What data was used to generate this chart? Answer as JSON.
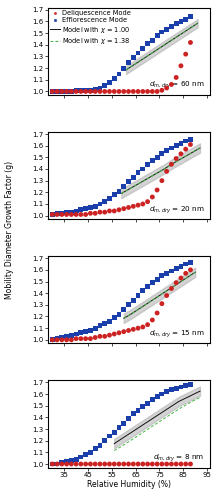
{
  "panels": [
    {
      "label": "$d_{m,dry}$ = 60 nm",
      "ylim": [
        0.97,
        1.72
      ],
      "yticks": [
        1.0,
        1.1,
        1.2,
        1.3,
        1.4,
        1.5,
        1.6,
        1.7
      ],
      "del_rh": [
        30,
        32,
        34,
        36,
        38,
        40,
        42,
        44,
        46,
        48,
        50,
        52,
        54,
        56,
        58,
        60,
        62,
        64,
        66,
        68,
        70,
        72,
        74,
        76,
        78,
        80,
        82,
        84,
        86,
        88
      ],
      "del_gf": [
        1.0,
        1.0,
        1.0,
        1.0,
        1.0,
        1.0,
        1.0,
        1.0,
        1.0,
        1.0,
        1.0,
        1.0,
        1.0,
        1.0,
        1.0,
        1.0,
        1.0,
        1.0,
        1.0,
        1.0,
        1.0,
        1.0,
        1.0,
        1.01,
        1.03,
        1.06,
        1.12,
        1.22,
        1.32,
        1.42
      ],
      "eff_rh": [
        30,
        32,
        34,
        36,
        38,
        40,
        42,
        44,
        46,
        48,
        50,
        52,
        54,
        56,
        58,
        60,
        62,
        64,
        66,
        68,
        70,
        72,
        74,
        76,
        78,
        80,
        82,
        84,
        86,
        88
      ],
      "eff_gf": [
        1.0,
        1.0,
        1.0,
        1.0,
        1.0,
        1.01,
        1.01,
        1.01,
        1.01,
        1.02,
        1.03,
        1.05,
        1.08,
        1.11,
        1.15,
        1.2,
        1.25,
        1.29,
        1.33,
        1.37,
        1.41,
        1.44,
        1.48,
        1.51,
        1.53,
        1.56,
        1.58,
        1.6,
        1.62,
        1.64
      ],
      "model1_rh": [
        61,
        64,
        67,
        70,
        73,
        76,
        79,
        82,
        85,
        88,
        91
      ],
      "model1_gf": [
        1.185,
        1.225,
        1.265,
        1.305,
        1.345,
        1.385,
        1.425,
        1.465,
        1.505,
        1.545,
        1.585
      ],
      "model1_band": 0.035,
      "model2_rh": [
        61,
        64,
        67,
        70,
        73,
        76,
        79,
        82,
        85,
        88,
        91
      ],
      "model2_gf": [
        1.185,
        1.225,
        1.265,
        1.305,
        1.345,
        1.385,
        1.425,
        1.465,
        1.505,
        1.545,
        1.585
      ],
      "show_legend": true
    },
    {
      "label": "$d_{m,dry}$ = 20 nm",
      "ylim": [
        0.97,
        1.72
      ],
      "yticks": [
        1.0,
        1.1,
        1.2,
        1.3,
        1.4,
        1.5,
        1.6,
        1.7
      ],
      "del_rh": [
        30,
        32,
        34,
        36,
        38,
        40,
        42,
        44,
        46,
        48,
        50,
        52,
        54,
        56,
        58,
        60,
        62,
        64,
        66,
        68,
        70,
        72,
        74,
        76,
        78,
        80,
        82,
        84,
        86,
        88
      ],
      "del_gf": [
        1.01,
        1.01,
        1.01,
        1.01,
        1.01,
        1.01,
        1.01,
        1.01,
        1.02,
        1.02,
        1.03,
        1.03,
        1.04,
        1.04,
        1.05,
        1.06,
        1.07,
        1.08,
        1.09,
        1.1,
        1.12,
        1.16,
        1.22,
        1.3,
        1.38,
        1.44,
        1.49,
        1.53,
        1.57,
        1.61
      ],
      "eff_rh": [
        30,
        32,
        34,
        36,
        38,
        40,
        42,
        44,
        46,
        48,
        50,
        52,
        54,
        56,
        58,
        60,
        62,
        64,
        66,
        68,
        70,
        72,
        74,
        76,
        78,
        80,
        82,
        84,
        86,
        88
      ],
      "eff_gf": [
        1.01,
        1.02,
        1.02,
        1.03,
        1.03,
        1.04,
        1.05,
        1.06,
        1.07,
        1.08,
        1.1,
        1.12,
        1.15,
        1.18,
        1.21,
        1.25,
        1.29,
        1.33,
        1.37,
        1.4,
        1.44,
        1.47,
        1.5,
        1.53,
        1.56,
        1.58,
        1.6,
        1.62,
        1.64,
        1.65
      ],
      "model1_rh": [
        59,
        62,
        65,
        68,
        71,
        74,
        77,
        80,
        83,
        86,
        89,
        92
      ],
      "model1_gf": [
        1.19,
        1.225,
        1.26,
        1.295,
        1.33,
        1.365,
        1.4,
        1.44,
        1.475,
        1.51,
        1.545,
        1.58
      ],
      "model1_band": 0.04,
      "model2_rh": [
        59,
        62,
        65,
        68,
        71,
        74,
        77,
        80,
        83,
        86,
        89,
        92
      ],
      "model2_gf": [
        1.19,
        1.225,
        1.26,
        1.295,
        1.33,
        1.365,
        1.4,
        1.44,
        1.475,
        1.51,
        1.545,
        1.58
      ],
      "show_legend": false
    },
    {
      "label": "$d_{m,dry}$ = 15 nm",
      "ylim": [
        0.97,
        1.72
      ],
      "yticks": [
        1.0,
        1.1,
        1.2,
        1.3,
        1.4,
        1.5,
        1.6,
        1.7
      ],
      "del_rh": [
        30,
        32,
        34,
        36,
        38,
        40,
        42,
        44,
        46,
        48,
        50,
        52,
        54,
        56,
        58,
        60,
        62,
        64,
        66,
        68,
        70,
        72,
        74,
        76,
        78,
        80,
        82,
        84,
        86,
        88
      ],
      "del_gf": [
        1.0,
        1.0,
        1.0,
        1.0,
        1.0,
        1.01,
        1.01,
        1.01,
        1.01,
        1.02,
        1.03,
        1.03,
        1.04,
        1.05,
        1.06,
        1.07,
        1.08,
        1.09,
        1.1,
        1.11,
        1.13,
        1.17,
        1.23,
        1.31,
        1.38,
        1.44,
        1.49,
        1.53,
        1.57,
        1.6
      ],
      "eff_rh": [
        30,
        32,
        34,
        36,
        38,
        40,
        42,
        44,
        46,
        48,
        50,
        52,
        54,
        56,
        58,
        60,
        62,
        64,
        66,
        68,
        70,
        72,
        74,
        76,
        78,
        80,
        82,
        84,
        86,
        88
      ],
      "eff_gf": [
        1.0,
        1.01,
        1.02,
        1.03,
        1.04,
        1.05,
        1.06,
        1.07,
        1.08,
        1.1,
        1.12,
        1.14,
        1.16,
        1.19,
        1.22,
        1.26,
        1.3,
        1.34,
        1.38,
        1.42,
        1.46,
        1.49,
        1.52,
        1.55,
        1.57,
        1.59,
        1.61,
        1.63,
        1.65,
        1.66
      ],
      "model1_rh": [
        60,
        63,
        66,
        69,
        72,
        75,
        78,
        81,
        84,
        87,
        90
      ],
      "model1_gf": [
        1.185,
        1.22,
        1.26,
        1.3,
        1.34,
        1.38,
        1.42,
        1.46,
        1.5,
        1.54,
        1.58
      ],
      "model1_band": 0.04,
      "model2_rh": [
        60,
        63,
        66,
        69,
        72,
        75,
        78,
        81,
        84,
        87,
        90
      ],
      "model2_gf": [
        1.185,
        1.22,
        1.26,
        1.3,
        1.34,
        1.38,
        1.42,
        1.46,
        1.5,
        1.54,
        1.58
      ],
      "show_legend": false
    },
    {
      "label": "$d_{m,dry}$ = 8 nm",
      "ylim": [
        0.97,
        1.72
      ],
      "yticks": [
        1.0,
        1.1,
        1.2,
        1.3,
        1.4,
        1.5,
        1.6,
        1.7
      ],
      "del_rh": [
        30,
        32,
        34,
        36,
        38,
        40,
        42,
        44,
        46,
        48,
        50,
        52,
        54,
        56,
        58,
        60,
        62,
        64,
        66,
        68,
        70,
        72,
        74,
        76,
        78,
        80,
        82,
        84,
        86,
        88
      ],
      "del_gf": [
        1.0,
        1.0,
        1.0,
        1.0,
        1.0,
        1.0,
        1.0,
        1.0,
        1.0,
        1.0,
        1.0,
        1.0,
        1.0,
        1.0,
        1.0,
        1.0,
        1.0,
        1.0,
        1.0,
        1.0,
        1.0,
        1.0,
        1.0,
        1.0,
        1.0,
        1.0,
        1.0,
        1.0,
        1.0,
        1.0
      ],
      "eff_rh": [
        30,
        32,
        34,
        36,
        38,
        40,
        42,
        44,
        46,
        48,
        50,
        52,
        54,
        56,
        58,
        60,
        62,
        64,
        66,
        68,
        70,
        72,
        74,
        76,
        78,
        80,
        82,
        84,
        86,
        88
      ],
      "eff_gf": [
        1.0,
        1.0,
        1.01,
        1.02,
        1.03,
        1.04,
        1.06,
        1.08,
        1.1,
        1.13,
        1.16,
        1.2,
        1.24,
        1.27,
        1.31,
        1.35,
        1.39,
        1.43,
        1.46,
        1.49,
        1.52,
        1.55,
        1.58,
        1.6,
        1.62,
        1.64,
        1.65,
        1.66,
        1.67,
        1.68
      ],
      "model1_rh": [
        56,
        59,
        62,
        65,
        68,
        71,
        74,
        77,
        80,
        83,
        86,
        89,
        92
      ],
      "model1_gf": [
        1.175,
        1.215,
        1.255,
        1.295,
        1.335,
        1.375,
        1.415,
        1.455,
        1.495,
        1.535,
        1.565,
        1.595,
        1.625
      ],
      "model1_band": 0.04,
      "model2_rh": [
        56,
        59,
        62,
        65,
        68,
        71,
        74,
        77,
        80,
        83,
        86,
        89,
        92
      ],
      "model2_gf": [
        1.115,
        1.15,
        1.19,
        1.23,
        1.27,
        1.31,
        1.35,
        1.39,
        1.43,
        1.47,
        1.505,
        1.54,
        1.57
      ],
      "show_legend": false
    }
  ],
  "del_color": "#cc2222",
  "eff_color": "#1a3eaa",
  "model1_color": "#111111",
  "model2_color": "#44bb44",
  "band_color": "#b0b0b0",
  "band_alpha": 0.55,
  "xlabel": "Relative Humidity (%)",
  "ylabel": "Mobility Diameter Growth Factor (g)",
  "xticks": [
    35,
    45,
    55,
    65,
    75,
    85,
    95
  ],
  "xlim": [
    28,
    96
  ],
  "fig_width": 2.16,
  "fig_height": 5.0,
  "dpi": 100,
  "marker_size": 3.5,
  "legend_fontsize": 4.8,
  "tick_labelsize": 5,
  "axis_labelsize": 5.5,
  "panel_label_fontsize": 5.2
}
